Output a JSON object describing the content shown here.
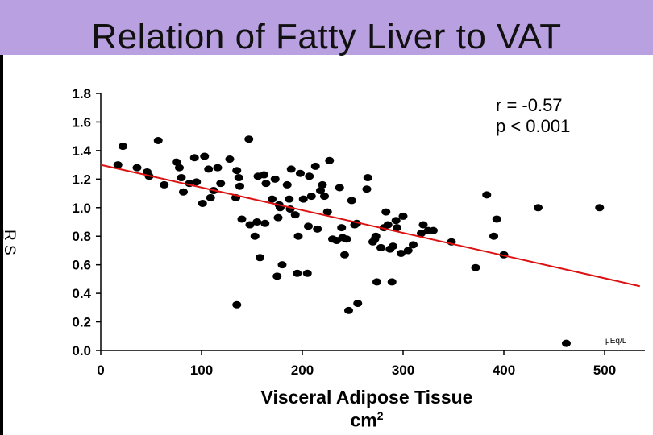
{
  "slide": {
    "title": "Relation of Fatty Liver to VAT",
    "band_color": "#b9a0e0"
  },
  "chart_data": {
    "type": "scatter",
    "title": "",
    "xlabel": "Visceral Adipose Tissue",
    "xunit": "cm",
    "xunit_sup": "2",
    "ylabel": "R̲ S",
    "units_note": "μEq/L",
    "xlim": [
      0,
      540
    ],
    "ylim": [
      0,
      1.8
    ],
    "xticks": [
      0,
      100,
      200,
      300,
      400,
      500
    ],
    "yticks": [
      0.0,
      0.2,
      0.4,
      0.6,
      0.8,
      1.0,
      1.2,
      1.4,
      1.6,
      1.8
    ],
    "ytick_labels": [
      "0.0",
      "0.2",
      "0.4",
      "0.6",
      "0.8",
      "1.0",
      "1.2",
      "1.4",
      "1.6",
      "1.8"
    ],
    "annotations": [
      "r = -0.57",
      "p < 0.001"
    ],
    "regression_line": {
      "x": [
        0,
        535
      ],
      "y": [
        1.3,
        0.45
      ],
      "color": "#dd1111"
    },
    "point_color": "#000000",
    "points": [
      [
        17,
        1.3
      ],
      [
        22,
        1.43
      ],
      [
        36,
        1.28
      ],
      [
        46,
        1.25
      ],
      [
        48,
        1.22
      ],
      [
        57,
        1.47
      ],
      [
        63,
        1.16
      ],
      [
        75,
        1.32
      ],
      [
        78,
        1.28
      ],
      [
        80,
        1.21
      ],
      [
        82,
        1.11
      ],
      [
        88,
        1.17
      ],
      [
        93,
        1.35
      ],
      [
        95,
        1.18
      ],
      [
        101,
        1.03
      ],
      [
        103,
        1.36
      ],
      [
        107,
        1.27
      ],
      [
        109,
        1.07
      ],
      [
        112,
        1.12
      ],
      [
        116,
        1.28
      ],
      [
        119,
        1.17
      ],
      [
        128,
        1.34
      ],
      [
        134,
        1.07
      ],
      [
        135,
        1.26
      ],
      [
        137,
        1.21
      ],
      [
        138,
        1.15
      ],
      [
        140,
        0.92
      ],
      [
        135,
        0.32
      ],
      [
        147,
        1.48
      ],
      [
        148,
        0.88
      ],
      [
        153,
        0.8
      ],
      [
        155,
        0.9
      ],
      [
        156,
        1.22
      ],
      [
        158,
        0.65
      ],
      [
        162,
        1.23
      ],
      [
        163,
        0.89
      ],
      [
        164,
        1.17
      ],
      [
        170,
        1.06
      ],
      [
        173,
        1.2
      ],
      [
        175,
        0.52
      ],
      [
        176,
        0.93
      ],
      [
        177,
        1.02
      ],
      [
        178,
        1.0
      ],
      [
        180,
        0.6
      ],
      [
        185,
        1.16
      ],
      [
        187,
        1.06
      ],
      [
        188,
        0.99
      ],
      [
        189,
        1.27
      ],
      [
        193,
        0.95
      ],
      [
        195,
        0.54
      ],
      [
        196,
        0.8
      ],
      [
        198,
        1.24
      ],
      [
        201,
        1.06
      ],
      [
        205,
        0.54
      ],
      [
        206,
        0.87
      ],
      [
        207,
        1.22
      ],
      [
        209,
        1.08
      ],
      [
        213,
        1.29
      ],
      [
        215,
        0.85
      ],
      [
        218,
        1.12
      ],
      [
        220,
        1.16
      ],
      [
        222,
        1.08
      ],
      [
        225,
        0.97
      ],
      [
        227,
        1.33
      ],
      [
        230,
        0.78
      ],
      [
        234,
        0.77
      ],
      [
        237,
        1.14
      ],
      [
        239,
        0.86
      ],
      [
        240,
        0.79
      ],
      [
        242,
        0.67
      ],
      [
        244,
        0.78
      ],
      [
        246,
        0.28
      ],
      [
        249,
        1.05
      ],
      [
        252,
        0.88
      ],
      [
        254,
        0.89
      ],
      [
        255,
        0.33
      ],
      [
        264,
        1.13
      ],
      [
        265,
        1.21
      ],
      [
        270,
        0.76
      ],
      [
        272,
        0.78
      ],
      [
        273,
        0.8
      ],
      [
        274,
        0.48
      ],
      [
        278,
        0.72
      ],
      [
        281,
        0.86
      ],
      [
        283,
        0.97
      ],
      [
        285,
        0.88
      ],
      [
        287,
        0.71
      ],
      [
        289,
        0.48
      ],
      [
        290,
        0.73
      ],
      [
        293,
        0.91
      ],
      [
        294,
        0.86
      ],
      [
        298,
        0.68
      ],
      [
        300,
        0.94
      ],
      [
        305,
        0.7
      ],
      [
        310,
        0.74
      ],
      [
        318,
        0.82
      ],
      [
        320,
        0.88
      ],
      [
        325,
        0.84
      ],
      [
        330,
        0.84
      ],
      [
        348,
        0.76
      ],
      [
        372,
        0.58
      ],
      [
        383,
        1.09
      ],
      [
        390,
        0.8
      ],
      [
        393,
        0.92
      ],
      [
        400,
        0.67
      ],
      [
        434,
        1.0
      ],
      [
        462,
        0.05
      ],
      [
        495,
        1.0
      ]
    ]
  }
}
